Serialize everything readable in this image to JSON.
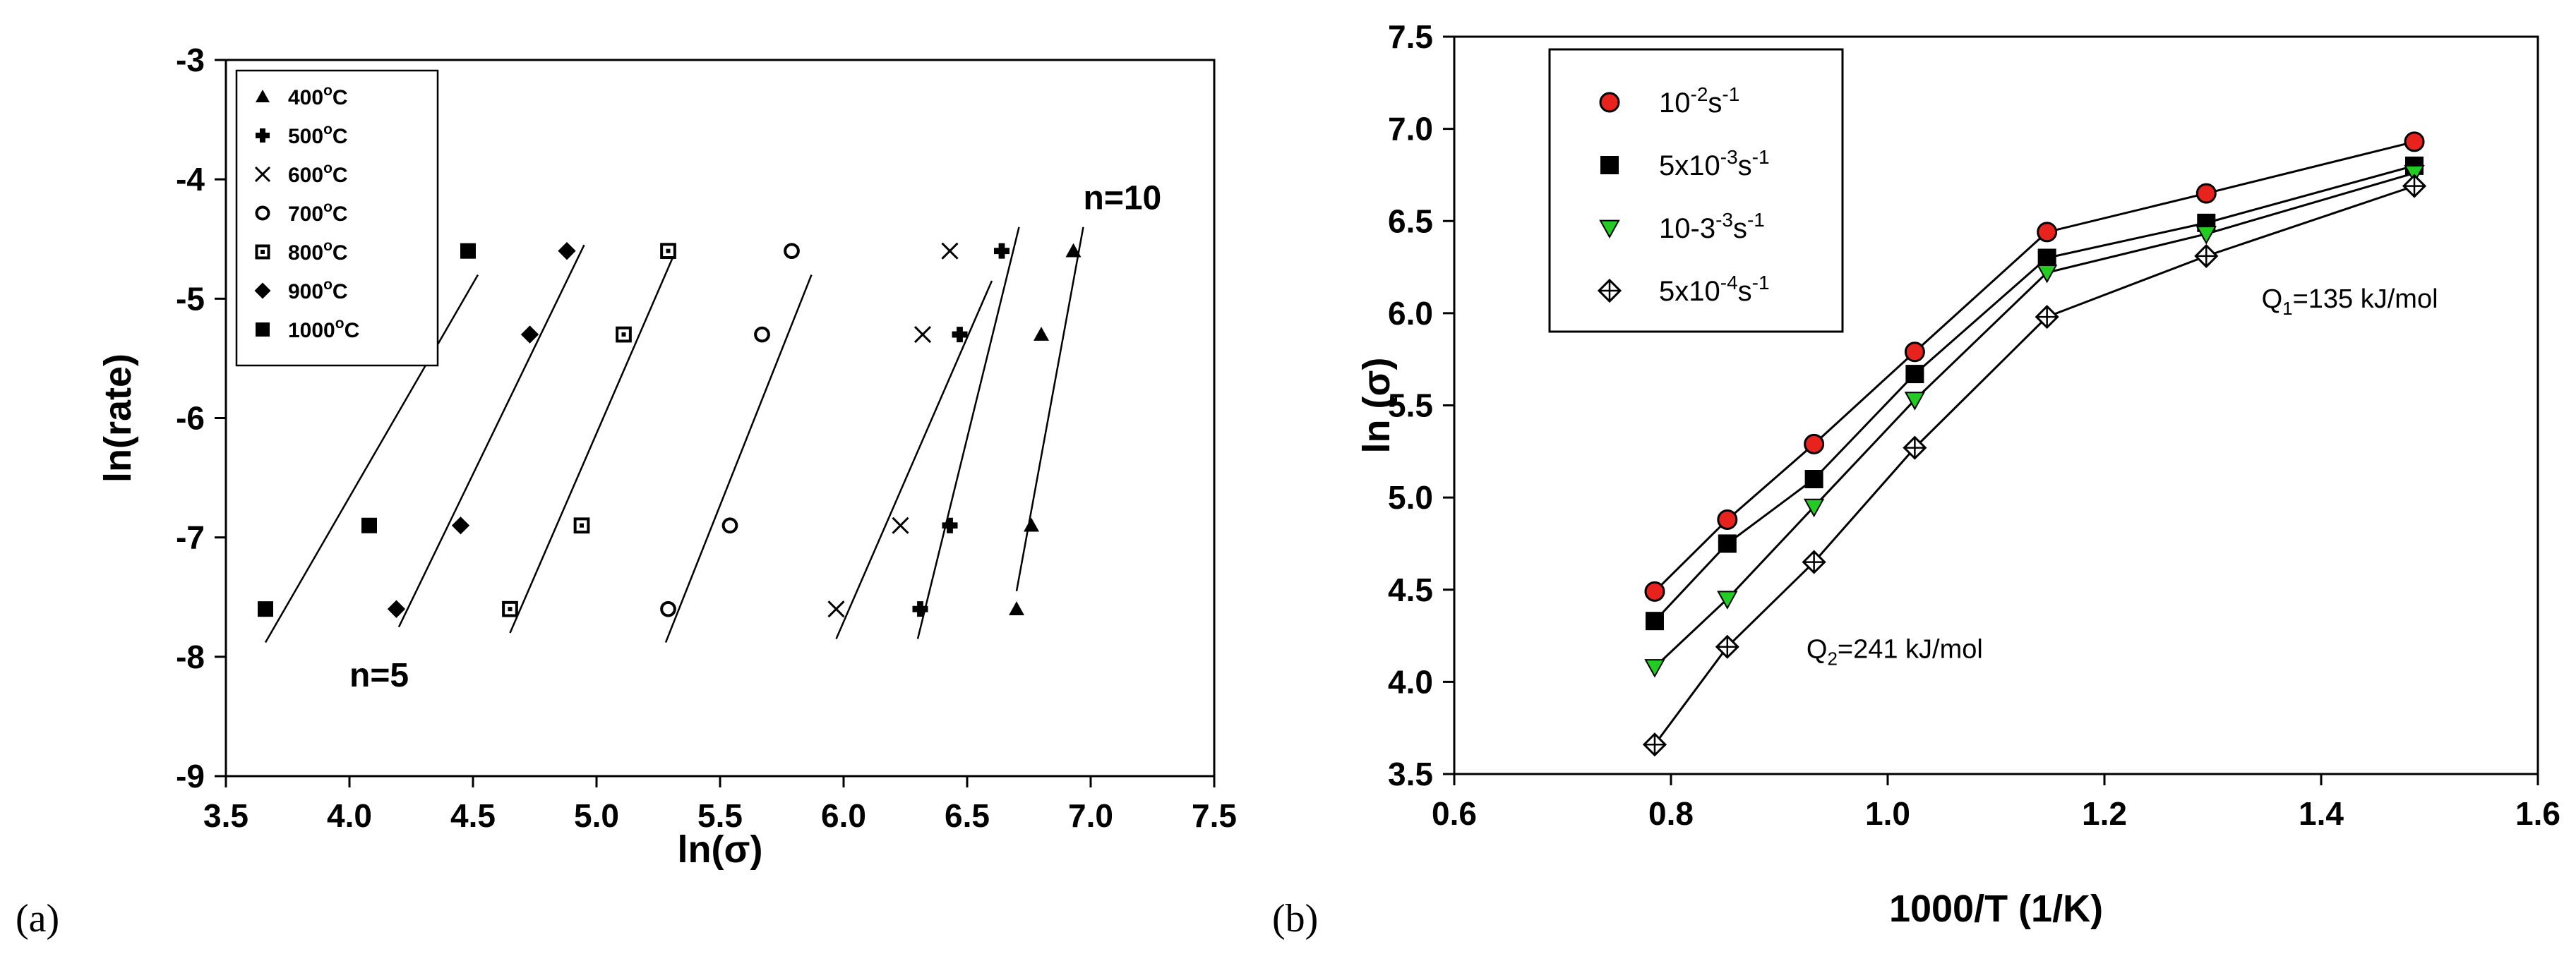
{
  "figure_labels": {
    "a": "(a)",
    "b": "(b)"
  },
  "chart_data": [
    {
      "id": "a",
      "type": "scatter",
      "xlabel": "ln(σ)",
      "ylabel": "ln(rate)",
      "xlim": [
        3.5,
        7.5
      ],
      "ylim": [
        -9,
        -3
      ],
      "xticks": [
        3.5,
        4.0,
        4.5,
        5.0,
        5.5,
        6.0,
        6.5,
        7.0,
        7.5
      ],
      "xtick_labels": [
        "3.5",
        "4.0",
        "4.5",
        "5.0",
        "5.5",
        "6.0",
        "6.5",
        "7.0",
        "7.5"
      ],
      "yticks": [
        -9,
        -8,
        -7,
        -6,
        -5,
        -4,
        -3
      ],
      "ytick_labels": [
        "-9",
        "-8",
        "-7",
        "-6",
        "-5",
        "-4",
        "-3"
      ],
      "grid": false,
      "legend_position": "top-left",
      "series": [
        {
          "name": "400°C",
          "temp": "400",
          "marker": "triangle",
          "x": [
            6.7,
            6.76,
            6.8,
            6.93
          ],
          "y": [
            -7.6,
            -6.9,
            -5.3,
            -4.6
          ]
        },
        {
          "name": "500°C",
          "temp": "500",
          "marker": "cross",
          "x": [
            6.31,
            6.43,
            6.47,
            6.64
          ],
          "y": [
            -7.6,
            -6.9,
            -5.3,
            -4.6
          ]
        },
        {
          "name": "600°C",
          "temp": "600",
          "marker": "x",
          "x": [
            5.97,
            6.23,
            6.32,
            6.43
          ],
          "y": [
            -7.6,
            -6.9,
            -5.3,
            -4.6
          ]
        },
        {
          "name": "700°C",
          "temp": "700",
          "marker": "circle-open",
          "x": [
            5.29,
            5.54,
            5.67,
            5.79
          ],
          "y": [
            -7.6,
            -6.9,
            -5.3,
            -4.6
          ]
        },
        {
          "name": "800°C",
          "temp": "800",
          "marker": "square-open-dot",
          "x": [
            4.65,
            4.94,
            5.11,
            5.29
          ],
          "y": [
            -7.6,
            -6.9,
            -5.3,
            -4.6
          ]
        },
        {
          "name": "900°C",
          "temp": "900",
          "marker": "diamond",
          "x": [
            4.19,
            4.45,
            4.73,
            4.88
          ],
          "y": [
            -7.6,
            -6.9,
            -5.3,
            -4.6
          ]
        },
        {
          "name": "1000°C",
          "temp": "1000",
          "marker": "square",
          "x": [
            3.66,
            4.08,
            4.48
          ],
          "y": [
            -7.6,
            -6.9,
            -4.6
          ]
        }
      ],
      "fit_lines": [
        {
          "series": "1000°C",
          "x": [
            3.66,
            4.52
          ],
          "y": [
            -7.88,
            -4.8
          ]
        },
        {
          "series": "900°C",
          "x": [
            4.2,
            4.95
          ],
          "y": [
            -7.75,
            -4.55
          ]
        },
        {
          "series": "800°C",
          "x": [
            4.65,
            5.32
          ],
          "y": [
            -7.8,
            -4.6
          ]
        },
        {
          "series": "700°C",
          "x": [
            5.28,
            5.87
          ],
          "y": [
            -7.88,
            -4.8
          ]
        },
        {
          "series": "600°C",
          "x": [
            5.97,
            6.6
          ],
          "y": [
            -7.85,
            -4.85
          ]
        },
        {
          "series": "500°C",
          "x": [
            6.3,
            6.71
          ],
          "y": [
            -7.85,
            -4.4
          ]
        },
        {
          "series": "400°C",
          "x": [
            6.7,
            6.97
          ],
          "y": [
            -7.45,
            -4.4
          ]
        }
      ],
      "annotations": [
        {
          "text": "n=5",
          "x": 4.0,
          "y": -8.25
        },
        {
          "text": "n=10",
          "x": 6.97,
          "y": -4.25
        }
      ]
    },
    {
      "id": "b",
      "type": "line",
      "xlabel": "1000/T (1/K)",
      "ylabel": "ln (σ)",
      "xlim": [
        0.6,
        1.6
      ],
      "ylim": [
        3.5,
        7.5
      ],
      "xticks": [
        0.6,
        0.8,
        1.0,
        1.2,
        1.4,
        1.6
      ],
      "xtick_labels": [
        "0.6",
        "0.8",
        "1.0",
        "1.2",
        "1.4",
        "1.6"
      ],
      "yticks": [
        3.5,
        4.0,
        4.5,
        5.0,
        5.5,
        6.0,
        6.5,
        7.0,
        7.5
      ],
      "ytick_labels": [
        "3.5",
        "4.0",
        "4.5",
        "5.0",
        "5.5",
        "6.0",
        "6.5",
        "7.0",
        "7.5"
      ],
      "grid": false,
      "legend_position": "top-left",
      "x": [
        0.785,
        0.852,
        0.932,
        1.025,
        1.147,
        1.294,
        1.486
      ],
      "series": [
        {
          "name": "10-2s-1",
          "rate": "10",
          "exp": "-2",
          "unit": "s",
          "unit_exp": "-1",
          "color": "#e8231e",
          "marker": "circle",
          "values": [
            4.49,
            4.88,
            5.29,
            5.79,
            6.44,
            6.65,
            6.93
          ]
        },
        {
          "name": "5x10-3s-1",
          "rate": "5x10",
          "exp": "-3",
          "unit": "s",
          "unit_exp": "-1",
          "color": "#1f3fe0",
          "marker": "square",
          "values": [
            4.33,
            4.75,
            5.1,
            5.67,
            6.3,
            6.49,
            6.8
          ]
        },
        {
          "name": "10-3-3s-1",
          "rate": "10-3",
          "exp": "-3",
          "unit": "s",
          "unit_exp": "-1",
          "color": "#22cc22",
          "marker": "triangle-down",
          "values": [
            4.08,
            4.45,
            4.95,
            5.53,
            6.22,
            6.43,
            6.76
          ]
        },
        {
          "name": "5x10-4s-1",
          "rate": "5x10",
          "exp": "-4",
          "unit": "s",
          "unit_exp": "-1",
          "color": "#ffffff",
          "marker": "diamond-open-cross",
          "values": [
            3.66,
            4.19,
            4.65,
            5.27,
            5.98,
            6.31,
            6.69
          ]
        }
      ],
      "annotations": [
        {
          "id": "q1",
          "text_main": "Q",
          "sub": "1",
          "text_rest": "=135 kJ/mol",
          "x": 1.345,
          "y": 6.03
        },
        {
          "id": "q2",
          "text_main": "Q",
          "sub": "2",
          "text_rest": "=241 kJ/mol",
          "x": 0.925,
          "y": 4.13
        }
      ]
    }
  ]
}
